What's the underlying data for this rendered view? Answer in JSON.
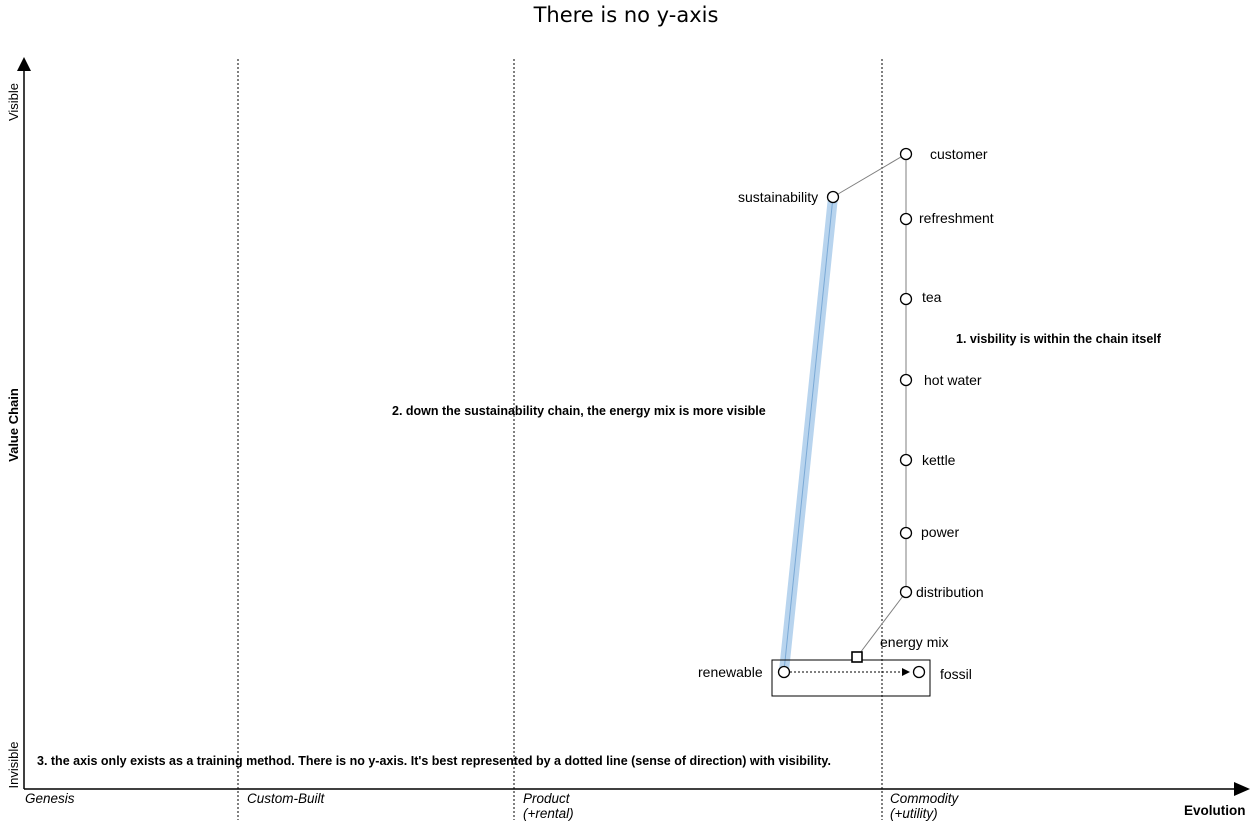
{
  "title": "There is no y-axis",
  "y_axis": {
    "label": "Value Chain",
    "top": "Visible",
    "bottom": "Invisible"
  },
  "x_axis": {
    "label": "Evolution",
    "stages": [
      {
        "name": "Genesis",
        "sub": ""
      },
      {
        "name": "Custom-Built",
        "sub": ""
      },
      {
        "name": "Product",
        "sub": "(+rental)"
      },
      {
        "name": "Commodity",
        "sub": "(+utility)"
      }
    ]
  },
  "components": [
    {
      "id": "customer",
      "label": "customer"
    },
    {
      "id": "refreshment",
      "label": "refreshment"
    },
    {
      "id": "tea",
      "label": "tea"
    },
    {
      "id": "hot_water",
      "label": "hot water"
    },
    {
      "id": "kettle",
      "label": "kettle"
    },
    {
      "id": "power",
      "label": "power"
    },
    {
      "id": "distribution",
      "label": "distribution"
    },
    {
      "id": "sustainability",
      "label": "sustainability"
    },
    {
      "id": "renewable",
      "label": "renewable"
    },
    {
      "id": "fossil",
      "label": "fossil"
    },
    {
      "id": "energy_mix",
      "label": "energy mix"
    }
  ],
  "notes": [
    "1. visbility is within the chain itself",
    "2. down the sustainability chain, the energy mix is more visible",
    "3. the axis only exists as a training method. There is no y-axis. It's best represented by a dotted line (sense of direction) with visibility."
  ],
  "colors": {
    "highlight": "#b8d4ee",
    "link": "#7f7f7f",
    "axis": "#000000"
  }
}
